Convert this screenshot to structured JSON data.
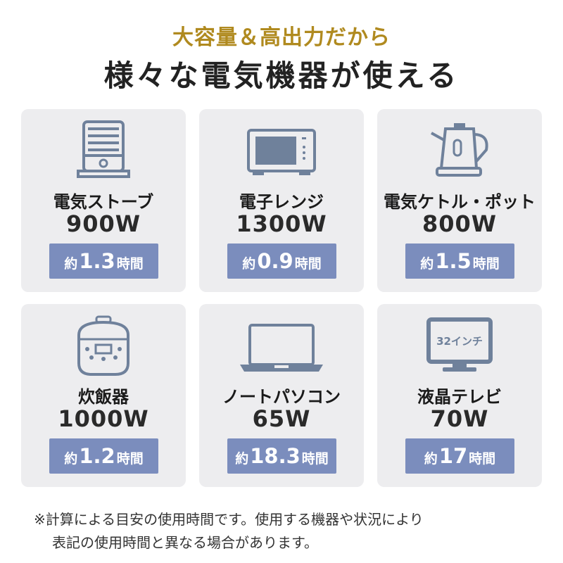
{
  "header": {
    "subtitle": "大容量＆高出力だから",
    "title": "様々な電気機器が使える"
  },
  "colors": {
    "accent_gold": "#b08a1f",
    "badge": "#7b8dbd",
    "icon": "#6f819b",
    "card": "#ededef"
  },
  "devices": [
    {
      "icon": "heater-icon",
      "name": "電気ストーブ",
      "watt": "900W",
      "prefix": "約",
      "hours": "1.3",
      "unit": "時間"
    },
    {
      "icon": "microwave-icon",
      "name": "電子レンジ",
      "watt": "1300W",
      "prefix": "約",
      "hours": "0.9",
      "unit": "時間"
    },
    {
      "icon": "kettle-icon",
      "name": "電気ケトル・ポット",
      "watt": "800W",
      "prefix": "約",
      "hours": "1.5",
      "unit": "時間"
    },
    {
      "icon": "rice-cooker-icon",
      "name": "炊飯器",
      "watt": "1000W",
      "prefix": "約",
      "hours": "1.2",
      "unit": "時間"
    },
    {
      "icon": "laptop-icon",
      "name": "ノートパソコン",
      "watt": "65W",
      "prefix": "約",
      "hours": "18.3",
      "unit": "時間"
    },
    {
      "icon": "tv-icon",
      "name": "液晶テレビ",
      "watt": "70W",
      "prefix": "約",
      "hours": "17",
      "unit": "時間",
      "tv_label": "32インチ"
    }
  ],
  "note": {
    "line1": "※計算による目安の使用時間です。使用する機器や状況により",
    "line2": "表記の使用時間と異なる場合があります。"
  }
}
